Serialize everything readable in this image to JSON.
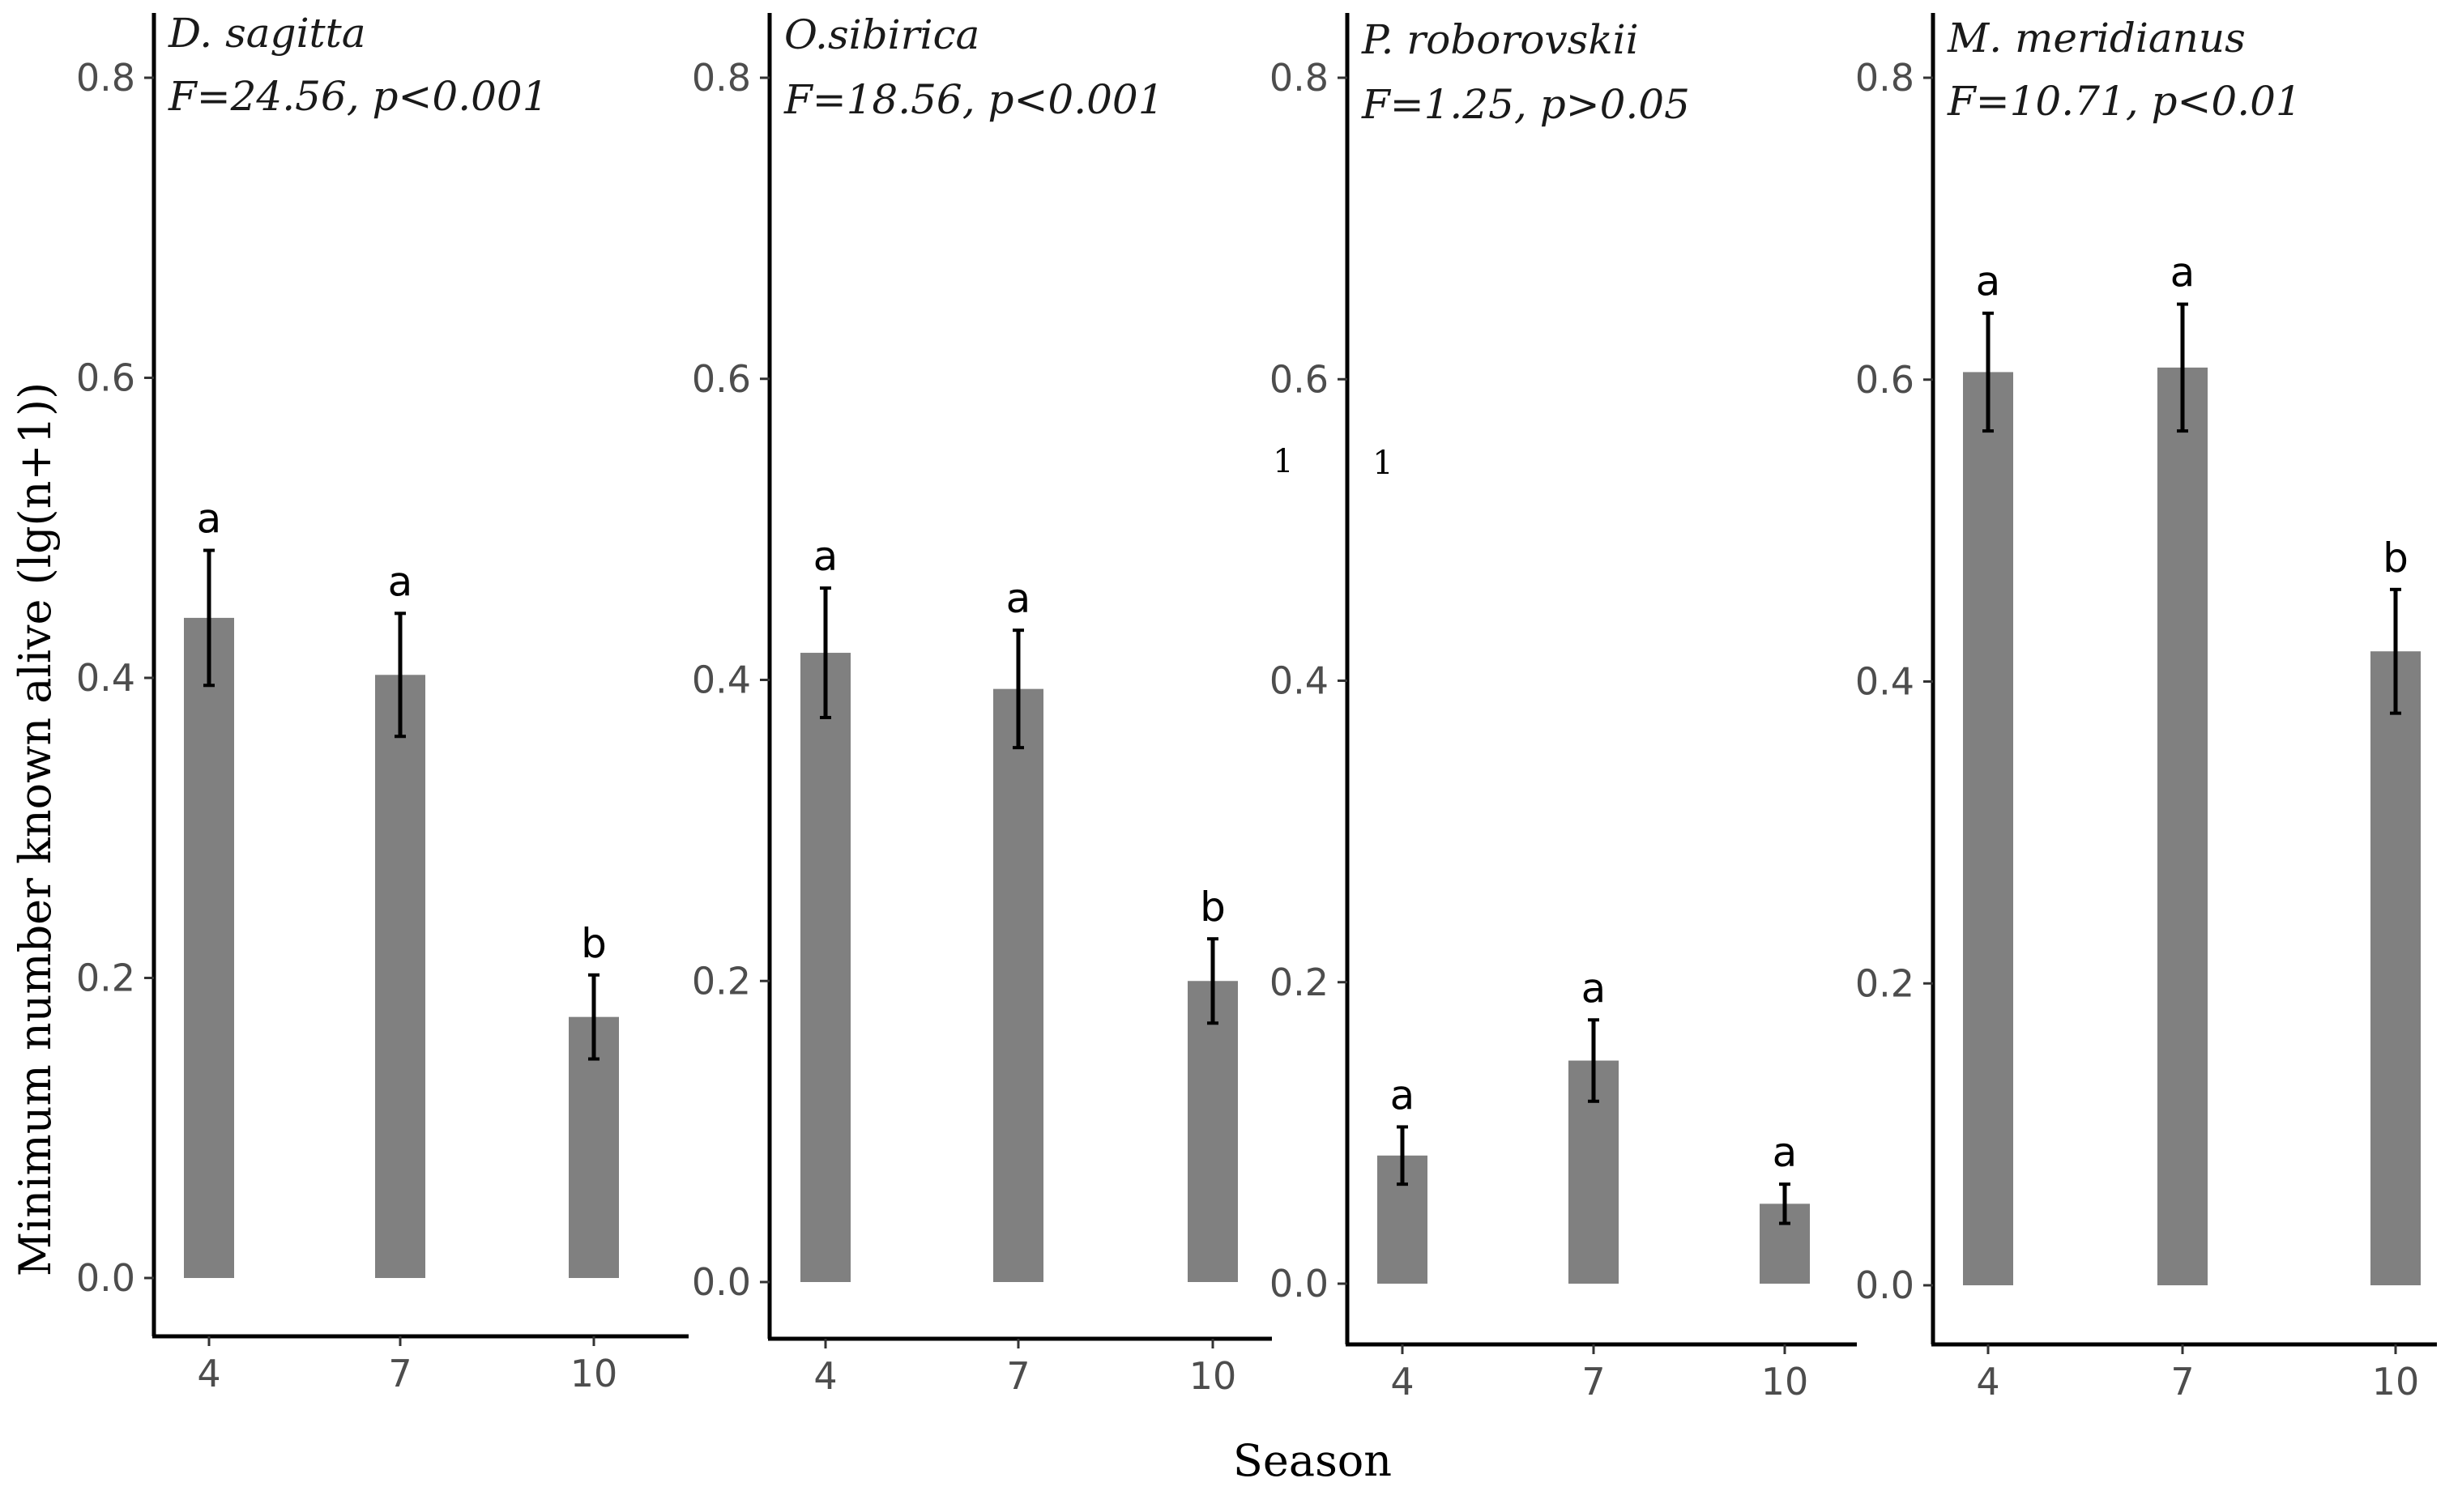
{
  "chart_data": {
    "type": "bar",
    "ylabel": "Minimum number known alive (lg(n+1))",
    "xlabel": "Season",
    "categories": [
      "4",
      "7",
      "10"
    ],
    "ylim": [
      0,
      0.8
    ],
    "yticks": [
      "0.0",
      "0.2",
      "0.4",
      "0.6",
      "0.8"
    ],
    "bar_color": "#808080",
    "panels": [
      {
        "title": "D. sagitta",
        "stat": "F=24.56, p<0.001",
        "values": [
          0.44,
          0.402,
          0.174
        ],
        "errors": [
          0.045,
          0.041,
          0.028
        ],
        "letters": [
          "a",
          "a",
          "b"
        ]
      },
      {
        "title": "O.sibirica",
        "stat": "F=18.56, p<0.001",
        "values": [
          0.418,
          0.394,
          0.2
        ],
        "errors": [
          0.043,
          0.039,
          0.028
        ],
        "letters": [
          "a",
          "a",
          "b"
        ]
      },
      {
        "title": "P. roborovskii",
        "stat": "F=1.25, p>0.05",
        "values": [
          0.085,
          0.148,
          0.053
        ],
        "errors": [
          0.019,
          0.027,
          0.013
        ],
        "letters": [
          "a",
          "a",
          "a"
        ],
        "stray_marks": [
          "1",
          "1"
        ]
      },
      {
        "title": "M. meridianus",
        "stat": "F=10.71, p<0.01",
        "values": [
          0.605,
          0.608,
          0.42
        ],
        "errors": [
          0.039,
          0.042,
          0.041
        ],
        "letters": [
          "a",
          "a",
          "b"
        ]
      }
    ]
  }
}
